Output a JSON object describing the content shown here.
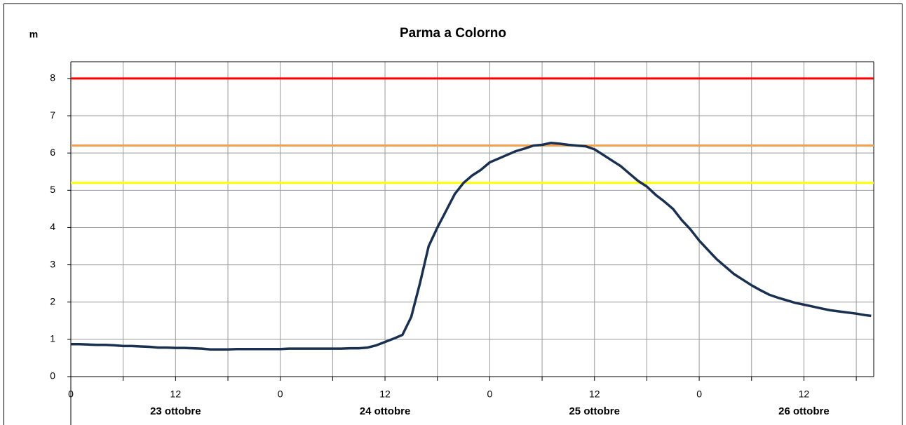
{
  "chart_data": {
    "type": "line",
    "title": "Parma a Colorno",
    "y_label": "m",
    "xlim": [
      0,
      92
    ],
    "ylim": [
      0,
      8.45
    ],
    "yticks": [
      0,
      1,
      2,
      3,
      4,
      5,
      6,
      7,
      8
    ],
    "xticks": [
      0,
      12,
      {
        "value": 24,
        "label": "0"
      },
      {
        "value": 36,
        "label": "12"
      },
      {
        "value": 48,
        "label": "0"
      },
      {
        "value": 60,
        "label": "12"
      },
      {
        "value": 72,
        "label": "0"
      },
      {
        "value": 84,
        "label": "12"
      }
    ],
    "xminor": [
      6,
      18,
      30,
      42,
      54,
      66,
      78,
      90
    ],
    "days": [
      "23 ottobre",
      "24 ottobre",
      "25 ottobre",
      "26 ottobre"
    ],
    "grid": true,
    "thresholds": [
      {
        "value": 8,
        "color": "#ff0000"
      },
      {
        "value": 6.2,
        "color": "#f0a050"
      },
      {
        "value": 5.2,
        "color": "#ffff00"
      }
    ],
    "series": [
      {
        "color": "#1a3050",
        "x": [
          0,
          1,
          2,
          3,
          4,
          5,
          6,
          7,
          8,
          9,
          10,
          11,
          12,
          13,
          14,
          15,
          16,
          17,
          18,
          19,
          20,
          21,
          22,
          23,
          24,
          25,
          26,
          27,
          28,
          29,
          30,
          31,
          32,
          33,
          34,
          35,
          36,
          37,
          38,
          39,
          40,
          41,
          42,
          43,
          44,
          45,
          46,
          47,
          48,
          49,
          50,
          51,
          52,
          53,
          54,
          55,
          56,
          57,
          58,
          59,
          60,
          61,
          62,
          63,
          64,
          65,
          66,
          67,
          68,
          69,
          70,
          71,
          72,
          73,
          74,
          75,
          76,
          77,
          78,
          79,
          80,
          81,
          82,
          83,
          84,
          85,
          86,
          87,
          88,
          89,
          90,
          91,
          91.7
        ],
        "values": [
          0.87,
          0.87,
          0.86,
          0.85,
          0.85,
          0.84,
          0.82,
          0.82,
          0.81,
          0.8,
          0.78,
          0.78,
          0.77,
          0.77,
          0.76,
          0.75,
          0.73,
          0.73,
          0.73,
          0.74,
          0.74,
          0.74,
          0.74,
          0.74,
          0.74,
          0.75,
          0.75,
          0.75,
          0.75,
          0.75,
          0.75,
          0.75,
          0.76,
          0.76,
          0.78,
          0.84,
          0.93,
          1.02,
          1.12,
          1.6,
          2.5,
          3.5,
          4.0,
          4.45,
          4.9,
          5.2,
          5.4,
          5.55,
          5.75,
          5.85,
          5.95,
          6.05,
          6.12,
          6.2,
          6.22,
          6.27,
          6.25,
          6.22,
          6.2,
          6.18,
          6.1,
          5.95,
          5.8,
          5.65,
          5.45,
          5.25,
          5.1,
          4.88,
          4.7,
          4.5,
          4.2,
          3.95,
          3.65,
          3.4,
          3.15,
          2.95,
          2.75,
          2.6,
          2.45,
          2.32,
          2.2,
          2.12,
          2.05,
          1.98,
          1.93,
          1.88,
          1.83,
          1.78,
          1.75,
          1.72,
          1.69,
          1.65,
          1.63
        ]
      }
    ]
  }
}
